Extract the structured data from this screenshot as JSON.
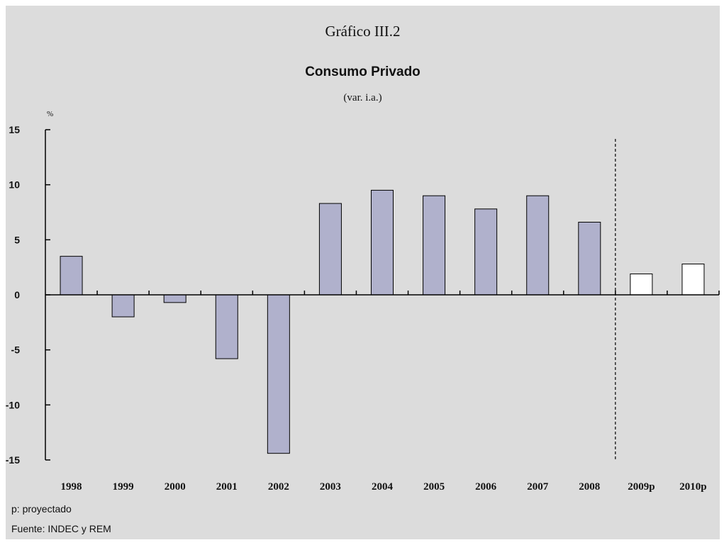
{
  "figure_label": "Gráfico III.2",
  "notes": {
    "projected": "p: proyectado",
    "source": "Fuente: INDEC y REM"
  },
  "colors": {
    "actual_bar": "#b0b1cc",
    "projected_bar": "#ffffff",
    "outline": "#000000",
    "background": "#dcdcdc"
  },
  "chart_data": {
    "type": "bar",
    "title": "Consumo Privado",
    "subtitle": "(var. i.a.)",
    "ylabel": "%",
    "xlabel": "",
    "ylim": [
      -15,
      15
    ],
    "yticks": [
      15,
      10,
      5,
      0,
      -5,
      -10,
      -15
    ],
    "grid": false,
    "categories": [
      "1998",
      "1999",
      "2000",
      "2001",
      "2002",
      "2003",
      "2004",
      "2005",
      "2006",
      "2007",
      "2008",
      "2009p",
      "2010p"
    ],
    "values": [
      3.5,
      -2.0,
      -0.7,
      -5.8,
      -14.4,
      8.3,
      9.5,
      9.0,
      7.8,
      9.0,
      6.6,
      1.9,
      2.8
    ],
    "projected": [
      false,
      false,
      false,
      false,
      false,
      false,
      false,
      false,
      false,
      false,
      false,
      true,
      true
    ],
    "projection_divider": "between 2008 and 2009p"
  }
}
